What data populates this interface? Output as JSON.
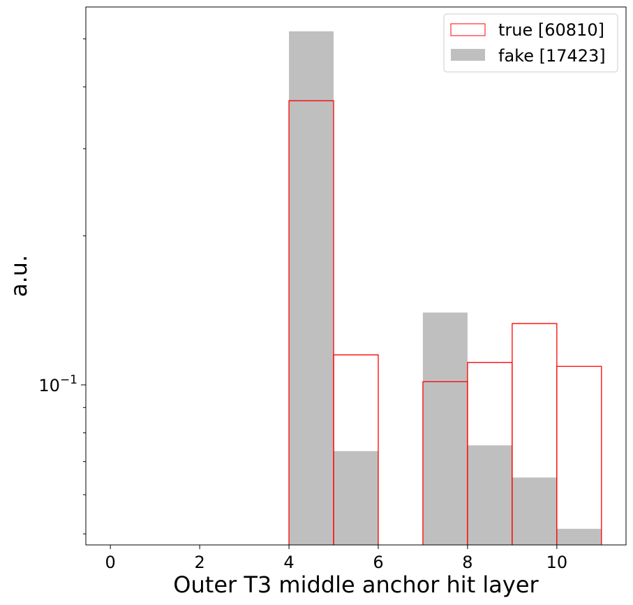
{
  "chart_data": {
    "type": "histogram",
    "title": "",
    "xlabel": "Outer T3 middle anchor hit layer",
    "ylabel": "a.u.",
    "yscale": "log",
    "xlim": [
      -0.55,
      11.55
    ],
    "ylim": [
      0.0475,
      0.58
    ],
    "grid": false,
    "legend_position": "top-right",
    "x_ticks": [
      0,
      2,
      4,
      6,
      8,
      10
    ],
    "x_tick_labels": [
      "0",
      "2",
      "4",
      "6",
      "8",
      "10"
    ],
    "y_tick_label": {
      "base": "10",
      "exponent": "−1",
      "value": 0.1
    },
    "bin_edges": [
      4,
      5,
      6,
      7,
      8,
      9,
      10,
      11
    ],
    "series": [
      {
        "name": "fake [17423]",
        "style": "filled",
        "color": "#bfbfbf",
        "values": [
          0.518,
          0.0735,
          0.0,
          0.14,
          0.0755,
          0.065,
          0.0512
        ]
      },
      {
        "name": "true [60810]",
        "style": "step",
        "color": "#ff0000",
        "values": [
          0.375,
          0.115,
          0.0,
          0.1015,
          0.111,
          0.133,
          0.109
        ]
      }
    ]
  }
}
